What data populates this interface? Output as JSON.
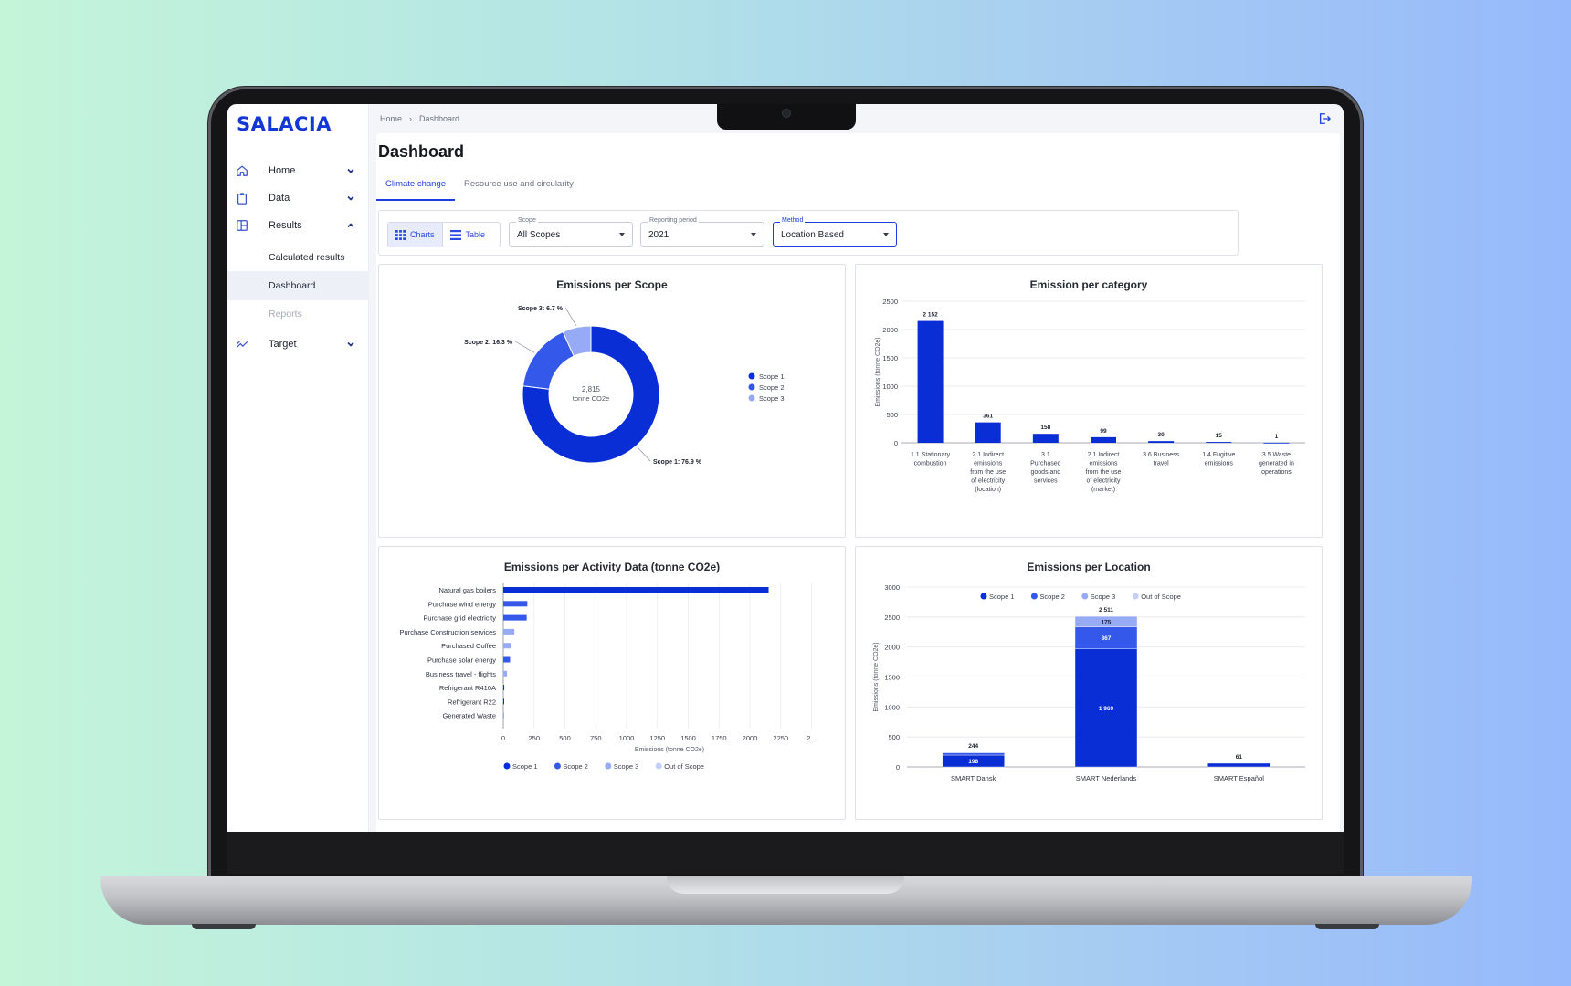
{
  "app": {
    "logo": "SALACIA"
  },
  "breadcrumb": {
    "home": "Home",
    "current": "Dashboard"
  },
  "sidebar": {
    "items": [
      {
        "label": "Home",
        "icon": "home-icon"
      },
      {
        "label": "Data",
        "icon": "clipboard-icon"
      },
      {
        "label": "Results",
        "icon": "layout-icon"
      },
      {
        "label": "Target",
        "icon": "trend-icon"
      }
    ],
    "sub_items": [
      {
        "label": "Calculated results"
      },
      {
        "label": "Dashboard"
      },
      {
        "label": "Reports"
      }
    ]
  },
  "page": {
    "title": "Dashboard"
  },
  "tabs": [
    "Climate change",
    "Resource use and circularity"
  ],
  "view_toggle": {
    "charts": "Charts",
    "table": "Table"
  },
  "filters": {
    "scope": {
      "label": "Scope",
      "value": "All Scopes"
    },
    "period": {
      "label": "Reporting period",
      "value": "2021"
    },
    "method": {
      "label": "Method",
      "value": "Location Based"
    }
  },
  "colors": {
    "scope1": "#0a2ed6",
    "scope2": "#3358ea",
    "scope3": "#97aaf5",
    "out": "#c5d0fb"
  },
  "chart_data": [
    {
      "type": "pie",
      "title": "Emissions per Scope",
      "center_value": "2,815",
      "center_unit": "tonne CO2e",
      "labels": [
        "Scope 1",
        "Scope 2",
        "Scope 3"
      ],
      "values": [
        76.9,
        16.3,
        6.7
      ],
      "slice_labels": [
        "Scope 1: 76.9 %",
        "Scope 2: 16.3 %",
        "Scope 3: 6.7 %"
      ],
      "legend": "right"
    },
    {
      "type": "bar",
      "title": "Emission per category",
      "ylabel": "Emissions (tonne CO2e)",
      "ylim": [
        0,
        2500
      ],
      "yticks": [
        0,
        500,
        1000,
        1500,
        2000,
        2500
      ],
      "categories": [
        [
          "1.1 Stationary",
          "combustion"
        ],
        [
          "2.1 Indirect",
          "emissions",
          "from the use",
          "of electricity",
          "(location)"
        ],
        [
          "3.1",
          "Purchased",
          "goods and",
          "services"
        ],
        [
          "2.1 Indirect",
          "emissions",
          "from the use",
          "of electricity",
          "(market)"
        ],
        [
          "3.6 Business",
          "travel"
        ],
        [
          "1.4 Fugitive",
          "emissions"
        ],
        [
          "3.5 Waste",
          "generated in",
          "operations"
        ]
      ],
      "values": [
        2152,
        361,
        158,
        99,
        30,
        15,
        1
      ],
      "value_labels": [
        "2 152",
        "361",
        "158",
        "99",
        "30",
        "15",
        "1"
      ]
    },
    {
      "type": "bar",
      "orientation": "horizontal",
      "title": "Emissions per Activity Data (tonne CO2e)",
      "xlabel": "Emissions (tonne CO2e)",
      "xlim": [
        0,
        2400
      ],
      "xticks": [
        "0",
        "250",
        "500",
        "750",
        "1000",
        "1250",
        "1500",
        "1750",
        "2000",
        "2250",
        "2..."
      ],
      "categories": [
        "Natural gas boilers",
        "Purchase wind energy",
        "Purchase grid electricity",
        "Purchase Construction services",
        "Purchased Coffee",
        "Purchase solar energy",
        "Business travel - flights",
        "Refrigerant R410A",
        "Refrigerant R22",
        "Generated Waste"
      ],
      "values": [
        2152,
        195,
        190,
        90,
        60,
        55,
        30,
        8,
        3,
        1
      ],
      "scopes": [
        1,
        2,
        2,
        3,
        3,
        2,
        3,
        1,
        1,
        3
      ],
      "legend": [
        "Scope 1",
        "Scope 2",
        "Scope 3",
        "Out of Scope"
      ]
    },
    {
      "type": "bar",
      "stacked": true,
      "title": "Emissions per Location",
      "ylabel": "Emissions (tonne CO2e)",
      "ylim": [
        0,
        3000
      ],
      "yticks": [
        0,
        500,
        1000,
        1500,
        2000,
        2500,
        3000
      ],
      "categories": [
        "SMART Dansk",
        "SMART Nederlands",
        "SMART Español"
      ],
      "series": [
        {
          "name": "Scope 1",
          "values": [
            198,
            1969,
            61
          ]
        },
        {
          "name": "Scope 2",
          "values": [
            40,
            367,
            0
          ]
        },
        {
          "name": "Scope 3",
          "values": [
            6,
            175,
            0
          ]
        },
        {
          "name": "Out of Scope",
          "values": [
            0,
            0,
            0
          ]
        }
      ],
      "segment_labels": [
        [
          "198",
          "",
          ""
        ],
        [
          "1 969",
          "367",
          "175"
        ],
        [
          "",
          "",
          ""
        ]
      ],
      "totals": [
        "244",
        "2 511",
        "61"
      ],
      "legend": [
        "Scope 1",
        "Scope 2",
        "Scope 3",
        "Out of Scope"
      ]
    }
  ]
}
